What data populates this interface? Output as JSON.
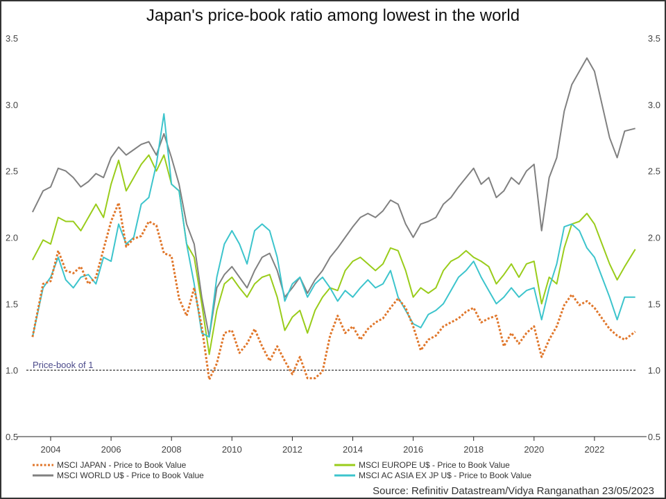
{
  "chart_data": {
    "type": "line",
    "title": "Japan's price-book ratio among lowest in the world",
    "xlabel": "",
    "ylabel": "",
    "xlim": [
      2003.3,
      2023.5
    ],
    "ylim": [
      0.5,
      3.5
    ],
    "x_ticks": [
      "2004",
      "2006",
      "2008",
      "2010",
      "2012",
      "2014",
      "2016",
      "2018",
      "2020",
      "2022"
    ],
    "y_ticks": [
      "0.5",
      "1.0",
      "1.5",
      "2.0",
      "2.5",
      "3.0",
      "3.5"
    ],
    "y_axis_sides": "left and right",
    "grid": false,
    "legend_position": "bottom",
    "reference_line": {
      "value": 1.0,
      "label": "Price-book of 1",
      "style": "dashed",
      "color": "#000000"
    },
    "source": "Source: Refinitiv Datastream/Vidya Ranganathan 23/05/2023",
    "x": [
      2003.4,
      2003.75,
      2004.0,
      2004.25,
      2004.5,
      2004.75,
      2005.0,
      2005.25,
      2005.5,
      2005.75,
      2006.0,
      2006.25,
      2006.5,
      2006.75,
      2007.0,
      2007.25,
      2007.5,
      2007.75,
      2008.0,
      2008.25,
      2008.5,
      2008.75,
      2009.0,
      2009.25,
      2009.5,
      2009.75,
      2010.0,
      2010.25,
      2010.5,
      2010.75,
      2011.0,
      2011.25,
      2011.5,
      2011.75,
      2012.0,
      2012.25,
      2012.5,
      2012.75,
      2013.0,
      2013.25,
      2013.5,
      2013.75,
      2014.0,
      2014.25,
      2014.5,
      2014.75,
      2015.0,
      2015.25,
      2015.5,
      2015.75,
      2016.0,
      2016.25,
      2016.5,
      2016.75,
      2017.0,
      2017.25,
      2017.5,
      2017.75,
      2018.0,
      2018.25,
      2018.5,
      2018.75,
      2019.0,
      2019.25,
      2019.5,
      2019.75,
      2020.0,
      2020.25,
      2020.5,
      2020.75,
      2021.0,
      2021.25,
      2021.5,
      2021.75,
      2022.0,
      2022.25,
      2022.5,
      2022.75,
      2023.0,
      2023.35
    ],
    "series": [
      {
        "name": "MSCI JAPAN - Price to Book Value",
        "color": "#e0762a",
        "style": "dotted",
        "values": [
          1.25,
          1.65,
          1.67,
          1.9,
          1.75,
          1.73,
          1.78,
          1.65,
          1.7,
          1.91,
          2.12,
          2.26,
          1.93,
          1.99,
          2.01,
          2.12,
          2.09,
          1.88,
          1.86,
          1.54,
          1.41,
          1.62,
          1.33,
          0.93,
          1.05,
          1.28,
          1.3,
          1.13,
          1.2,
          1.31,
          1.18,
          1.07,
          1.18,
          1.07,
          0.97,
          1.1,
          0.94,
          0.94,
          0.99,
          1.26,
          1.41,
          1.28,
          1.33,
          1.23,
          1.31,
          1.36,
          1.39,
          1.47,
          1.54,
          1.47,
          1.33,
          1.15,
          1.23,
          1.26,
          1.33,
          1.36,
          1.39,
          1.44,
          1.47,
          1.36,
          1.39,
          1.41,
          1.18,
          1.28,
          1.2,
          1.28,
          1.33,
          1.1,
          1.23,
          1.33,
          1.49,
          1.57,
          1.49,
          1.52,
          1.47,
          1.39,
          1.31,
          1.26,
          1.23,
          1.29
        ]
      },
      {
        "name": "MSCI EUROPE U$ - Price to Book Value",
        "color": "#99cc1a",
        "style": "solid",
        "values": [
          1.83,
          1.98,
          1.95,
          2.15,
          2.12,
          2.12,
          2.05,
          2.15,
          2.25,
          2.15,
          2.4,
          2.58,
          2.35,
          2.45,
          2.55,
          2.62,
          2.5,
          2.62,
          2.4,
          2.35,
          1.95,
          1.85,
          1.5,
          1.12,
          1.45,
          1.65,
          1.7,
          1.62,
          1.55,
          1.65,
          1.7,
          1.72,
          1.55,
          1.3,
          1.4,
          1.45,
          1.28,
          1.45,
          1.55,
          1.62,
          1.6,
          1.75,
          1.82,
          1.85,
          1.8,
          1.75,
          1.8,
          1.92,
          1.9,
          1.75,
          1.55,
          1.62,
          1.58,
          1.62,
          1.75,
          1.82,
          1.85,
          1.9,
          1.85,
          1.82,
          1.78,
          1.65,
          1.72,
          1.8,
          1.7,
          1.8,
          1.82,
          1.5,
          1.7,
          1.65,
          1.92,
          2.1,
          2.12,
          2.18,
          2.1,
          1.95,
          1.8,
          1.68,
          1.78,
          1.91
        ]
      },
      {
        "name": "MSCI WORLD U$ - Price to Book Value",
        "color": "#808080",
        "style": "solid",
        "values": [
          2.19,
          2.35,
          2.38,
          2.52,
          2.5,
          2.45,
          2.38,
          2.42,
          2.48,
          2.45,
          2.6,
          2.68,
          2.62,
          2.66,
          2.7,
          2.72,
          2.62,
          2.78,
          2.6,
          2.4,
          2.1,
          1.95,
          1.55,
          1.25,
          1.62,
          1.72,
          1.78,
          1.7,
          1.62,
          1.75,
          1.85,
          1.88,
          1.75,
          1.55,
          1.62,
          1.7,
          1.58,
          1.68,
          1.75,
          1.85,
          1.92,
          2.0,
          2.08,
          2.15,
          2.18,
          2.15,
          2.2,
          2.28,
          2.25,
          2.1,
          2.0,
          2.1,
          2.12,
          2.15,
          2.25,
          2.3,
          2.38,
          2.45,
          2.52,
          2.4,
          2.45,
          2.3,
          2.35,
          2.45,
          2.4,
          2.5,
          2.55,
          2.05,
          2.45,
          2.6,
          2.95,
          3.15,
          3.25,
          3.35,
          3.25,
          3.0,
          2.75,
          2.6,
          2.8,
          2.82
        ]
      },
      {
        "name": "MSCI AC ASIA EX JP U$ - Price to Book Value",
        "color": "#3cc4cc",
        "style": "solid",
        "values": [
          1.25,
          1.62,
          1.7,
          1.85,
          1.68,
          1.62,
          1.7,
          1.72,
          1.65,
          1.85,
          1.82,
          2.1,
          1.95,
          2.0,
          2.25,
          2.3,
          2.55,
          2.93,
          2.4,
          2.35,
          1.95,
          1.65,
          1.28,
          1.25,
          1.7,
          1.95,
          2.05,
          1.95,
          1.8,
          2.05,
          2.1,
          2.05,
          1.85,
          1.52,
          1.65,
          1.7,
          1.55,
          1.65,
          1.7,
          1.62,
          1.52,
          1.6,
          1.55,
          1.62,
          1.68,
          1.62,
          1.65,
          1.75,
          1.55,
          1.45,
          1.35,
          1.32,
          1.42,
          1.45,
          1.5,
          1.6,
          1.7,
          1.75,
          1.82,
          1.7,
          1.6,
          1.5,
          1.55,
          1.62,
          1.55,
          1.6,
          1.62,
          1.38,
          1.62,
          1.8,
          2.08,
          2.1,
          2.05,
          1.92,
          1.85,
          1.7,
          1.55,
          1.38,
          1.55,
          1.55
        ]
      }
    ]
  }
}
